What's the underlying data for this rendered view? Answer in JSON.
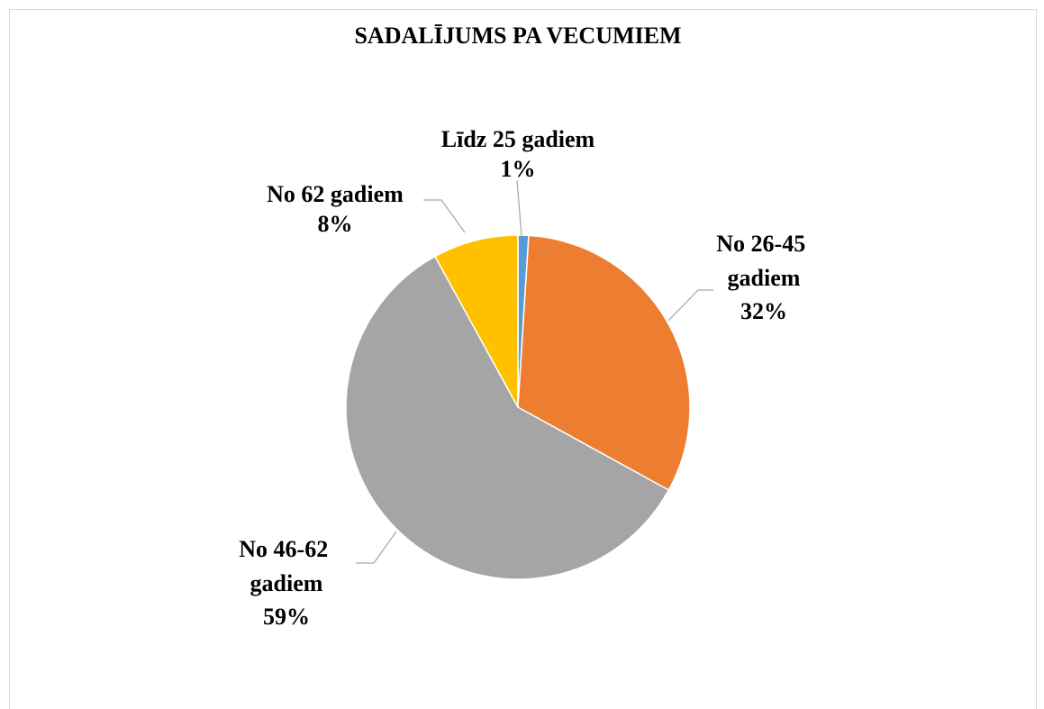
{
  "chart_data": {
    "type": "pie",
    "title": "SADALĪJUMS PA VECUMIEM",
    "categories": [
      "Līdz 25 gadiem",
      "No 26-45 gadiem",
      "No 46-62 gadiem",
      "No 62 gadiem"
    ],
    "values": [
      1,
      32,
      59,
      8
    ],
    "value_labels": [
      "1%",
      "32%",
      "59%",
      "8%"
    ],
    "colors": [
      "#5b9bd5",
      "#ed7d31",
      "#a5a5a5",
      "#ffc000"
    ]
  }
}
